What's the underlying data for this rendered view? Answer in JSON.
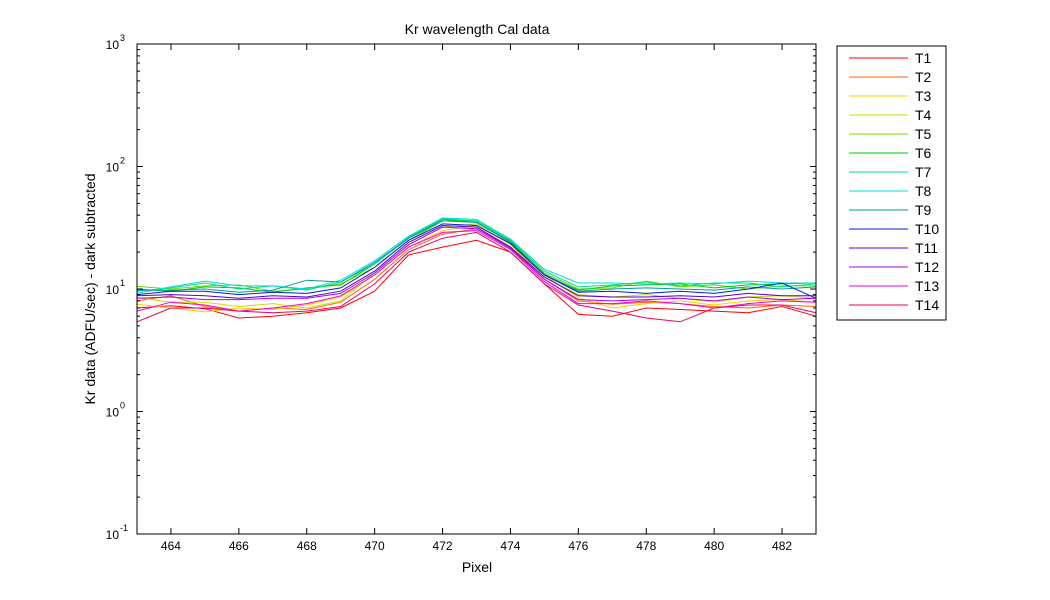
{
  "chart_data": {
    "type": "line",
    "title": "Kr wavelength Cal data",
    "xlabel": "Pixel",
    "ylabel": "Kr data (ADFU/sec) - dark subtracted",
    "xlim": [
      463,
      483
    ],
    "ylim": [
      0.1,
      1000
    ],
    "yscale": "log",
    "x_ticks": [
      "464",
      "466",
      "468",
      "470",
      "472",
      "474",
      "476",
      "478",
      "480",
      "482"
    ],
    "y_ticks": [
      {
        "value": 0.1,
        "base": "10",
        "exp": "-1"
      },
      {
        "value": 1,
        "base": "10",
        "exp": "0"
      },
      {
        "value": 10,
        "base": "10",
        "exp": "1"
      },
      {
        "value": 100,
        "base": "10",
        "exp": "2"
      },
      {
        "value": 1000,
        "base": "10",
        "exp": "3"
      }
    ],
    "legend_position": "outside-right",
    "x": [
      463,
      464,
      465,
      466,
      467,
      468,
      469,
      470,
      471,
      472,
      473,
      474,
      475,
      476,
      477,
      478,
      479,
      480,
      481,
      482,
      483
    ],
    "series": [
      {
        "name": "T1",
        "color": "#ff0000",
        "values": [
          7.0,
          7.3,
          6.9,
          5.8,
          6.0,
          6.4,
          7.0,
          9.6,
          19.0,
          22.0,
          25.0,
          20.0,
          11.0,
          6.2,
          6.0,
          7.0,
          6.8,
          6.6,
          6.4,
          7.2,
          6.0
        ]
      },
      {
        "name": "T2",
        "color": "#ff6600",
        "values": [
          8.0,
          8.8,
          7.2,
          6.6,
          7.0,
          6.8,
          7.8,
          12.0,
          21.0,
          28.0,
          31.0,
          22.0,
          12.0,
          8.0,
          7.5,
          7.8,
          7.6,
          7.2,
          7.0,
          7.4,
          7.2
        ]
      },
      {
        "name": "T3",
        "color": "#ffcc00",
        "values": [
          7.5,
          7.0,
          6.5,
          7.0,
          6.8,
          7.4,
          8.6,
          13.0,
          22.0,
          30.0,
          33.0,
          23.0,
          13.0,
          8.5,
          7.0,
          7.6,
          8.0,
          7.4,
          8.0,
          8.2,
          7.8
        ]
      },
      {
        "name": "T4",
        "color": "#ccdd00",
        "values": [
          8.5,
          7.8,
          7.8,
          7.2,
          7.6,
          7.0,
          8.0,
          13.5,
          23.0,
          32.0,
          34.0,
          23.0,
          12.5,
          9.0,
          8.6,
          9.0,
          8.4,
          7.8,
          8.6,
          8.8,
          8.4
        ]
      },
      {
        "name": "T5",
        "color": "#66dd00",
        "values": [
          10.5,
          10.0,
          10.6,
          10.8,
          9.6,
          10.0,
          11.0,
          15.0,
          25.0,
          36.0,
          36.0,
          25.0,
          13.5,
          10.0,
          10.2,
          11.6,
          10.4,
          10.8,
          10.0,
          10.6,
          10.6
        ]
      },
      {
        "name": "T6",
        "color": "#00cc00",
        "values": [
          10.0,
          9.6,
          10.4,
          10.2,
          9.4,
          10.2,
          10.8,
          16.0,
          26.0,
          37.0,
          35.0,
          24.5,
          13.0,
          9.8,
          10.6,
          10.8,
          11.0,
          10.2,
          10.8,
          11.0,
          11.2
        ]
      },
      {
        "name": "T7",
        "color": "#00dd88",
        "values": [
          9.6,
          10.2,
          11.2,
          10.0,
          10.6,
          9.8,
          11.4,
          16.0,
          26.5,
          37.5,
          36.0,
          25.0,
          14.0,
          10.4,
          10.8,
          11.4,
          10.6,
          11.2,
          11.2,
          10.4,
          11.0
        ]
      },
      {
        "name": "T8",
        "color": "#00dddd",
        "values": [
          9.2,
          10.4,
          11.6,
          10.6,
          10.6,
          10.0,
          11.8,
          17.0,
          27.0,
          38.0,
          37.0,
          25.5,
          14.5,
          11.2,
          11.2,
          11.0,
          11.2,
          11.0,
          11.6,
          11.2,
          11.2
        ]
      },
      {
        "name": "T9",
        "color": "#0099aa",
        "values": [
          9.8,
          9.8,
          10.0,
          9.4,
          9.8,
          11.8,
          11.4,
          16.5,
          26.0,
          36.0,
          35.0,
          24.0,
          13.2,
          9.6,
          10.0,
          10.2,
          10.0,
          9.8,
          10.4,
          10.0,
          10.4
        ]
      },
      {
        "name": "T10",
        "color": "#0022cc",
        "values": [
          9.0,
          9.6,
          9.6,
          9.0,
          9.4,
          9.2,
          10.2,
          15.0,
          25.0,
          34.0,
          33.0,
          23.5,
          13.0,
          9.4,
          9.6,
          9.2,
          9.6,
          9.2,
          10.0,
          11.2,
          8.4
        ]
      },
      {
        "name": "T11",
        "color": "#5500cc",
        "values": [
          8.8,
          9.0,
          8.8,
          8.4,
          8.8,
          8.6,
          9.6,
          14.0,
          24.0,
          33.0,
          32.0,
          22.0,
          12.5,
          8.8,
          8.6,
          8.6,
          8.8,
          8.6,
          9.2,
          8.8,
          8.8
        ]
      },
      {
        "name": "T12",
        "color": "#aa00ee",
        "values": [
          8.4,
          8.6,
          8.2,
          8.2,
          8.4,
          8.4,
          9.2,
          13.5,
          23.0,
          32.0,
          31.0,
          21.5,
          12.0,
          8.2,
          8.0,
          8.2,
          8.4,
          8.0,
          8.6,
          8.2,
          8.4
        ]
      },
      {
        "name": "T13",
        "color": "#ee00dd",
        "values": [
          6.6,
          7.8,
          7.4,
          6.6,
          7.0,
          7.6,
          8.8,
          13.0,
          22.0,
          29.0,
          30.0,
          21.0,
          11.5,
          7.6,
          7.6,
          8.0,
          7.6,
          7.0,
          7.6,
          8.0,
          7.8
        ]
      },
      {
        "name": "T14",
        "color": "#ee0066",
        "values": [
          5.4,
          7.0,
          7.0,
          6.6,
          6.4,
          6.6,
          7.2,
          11.0,
          20.0,
          26.0,
          29.0,
          20.0,
          11.0,
          7.4,
          6.6,
          5.8,
          5.4,
          7.0,
          7.4,
          7.4,
          6.4
        ]
      }
    ]
  }
}
